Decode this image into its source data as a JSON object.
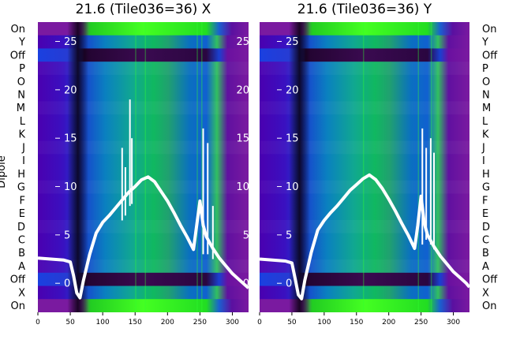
{
  "chart_data": {
    "type": "heatmap",
    "ylabel": "Dipole",
    "row_labels": [
      "On",
      "Y",
      "Off",
      "P",
      "O",
      "N",
      "M",
      "L",
      "K",
      "J",
      "I",
      "H",
      "G",
      "F",
      "E",
      "D",
      "C",
      "B",
      "A",
      "Off",
      "X",
      "On"
    ],
    "xlim": [
      0,
      325
    ],
    "x_ticks": [
      "0",
      "50",
      "100",
      "150",
      "200",
      "250",
      "300"
    ],
    "x_tick_values": [
      0,
      50,
      100,
      150,
      200,
      250,
      300
    ],
    "overlay_ylim": [
      -3,
      27
    ],
    "overlay_y_ticks": [
      "0",
      "5",
      "10",
      "15",
      "20",
      "25"
    ],
    "overlay_y_tick_values": [
      0,
      5,
      10,
      15,
      20,
      25
    ],
    "colors": {
      "background": "#7a1aa0",
      "off_band": "#1a0520",
      "on_band": "#22dd22",
      "curve": "#ffffff"
    },
    "panels": [
      {
        "title": "21.6 (Tile036=36) X",
        "curve": {
          "x": [
            0,
            20,
            40,
            50,
            55,
            60,
            65,
            70,
            80,
            90,
            100,
            110,
            120,
            130,
            140,
            150,
            160,
            170,
            180,
            190,
            200,
            210,
            220,
            230,
            240,
            245,
            250,
            255,
            260,
            270,
            280,
            290,
            300,
            310,
            320,
            325
          ],
          "y": [
            2.6,
            2.5,
            2.4,
            2.2,
            0.8,
            -1.0,
            -1.5,
            0.2,
            3.0,
            5.2,
            6.3,
            7.0,
            7.8,
            8.6,
            9.4,
            10.0,
            10.7,
            11.0,
            10.5,
            9.5,
            8.5,
            7.3,
            6.0,
            4.8,
            3.5,
            6.0,
            8.5,
            6.0,
            4.8,
            3.6,
            2.6,
            1.8,
            1.0,
            0.4,
            -0.2,
            -0.5
          ]
        },
        "spikes": [
          {
            "x": 130,
            "y0": 6.5,
            "y1": 14.0
          },
          {
            "x": 135,
            "y0": 7.0,
            "y1": 12.0
          },
          {
            "x": 142,
            "y0": 8.0,
            "y1": 19.0
          },
          {
            "x": 145,
            "y0": 8.2,
            "y1": 15.0
          },
          {
            "x": 255,
            "y0": 3.0,
            "y1": 16.0
          },
          {
            "x": 262,
            "y0": 3.0,
            "y1": 14.5
          },
          {
            "x": 270,
            "y0": 2.5,
            "y1": 8.0
          }
        ]
      },
      {
        "title": "21.6 (Tile036=36) Y",
        "curve": {
          "x": [
            0,
            20,
            40,
            50,
            55,
            60,
            65,
            70,
            80,
            90,
            100,
            110,
            120,
            130,
            140,
            150,
            160,
            170,
            180,
            190,
            200,
            210,
            220,
            230,
            240,
            245,
            250,
            255,
            260,
            270,
            280,
            290,
            300,
            310,
            320,
            325
          ],
          "y": [
            2.5,
            2.4,
            2.3,
            2.1,
            0.5,
            -1.2,
            -1.6,
            0.3,
            3.2,
            5.5,
            6.5,
            7.3,
            8.0,
            8.8,
            9.6,
            10.2,
            10.8,
            11.2,
            10.7,
            9.8,
            8.7,
            7.5,
            6.2,
            5.0,
            3.6,
            6.0,
            9.0,
            6.2,
            5.0,
            3.8,
            2.8,
            2.0,
            1.2,
            0.6,
            0.0,
            -0.4
          ]
        },
        "spikes": [
          {
            "x": 252,
            "y0": 4.0,
            "y1": 16.0
          },
          {
            "x": 258,
            "y0": 4.5,
            "y1": 14.0
          },
          {
            "x": 265,
            "y0": 4.0,
            "y1": 15.0
          },
          {
            "x": 270,
            "y0": 3.5,
            "y1": 13.5
          }
        ]
      }
    ]
  }
}
